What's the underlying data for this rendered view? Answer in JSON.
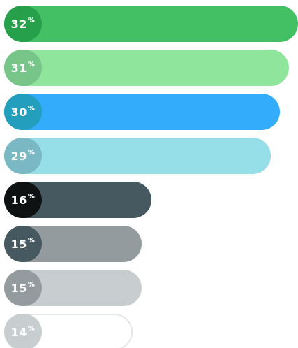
{
  "chart_data": {
    "type": "bar",
    "orientation": "horizontal",
    "unit_label": "%",
    "xlim": [
      0,
      32
    ],
    "bars": [
      {
        "value": 32,
        "label": "32",
        "bar_color": "#43c064",
        "badge_color": "#26a04a",
        "outline": false
      },
      {
        "value": 31,
        "label": "31",
        "bar_color": "#90e59d",
        "badge_color": "#77c589",
        "outline": false
      },
      {
        "value": 30,
        "label": "30",
        "bar_color": "#33adfb",
        "badge_color": "#239fbd",
        "outline": false
      },
      {
        "value": 29,
        "label": "29",
        "bar_color": "#96dee8",
        "badge_color": "#7ab9c3",
        "outline": false
      },
      {
        "value": 16,
        "label": "16",
        "bar_color": "#465961",
        "badge_color": "#0f1213",
        "outline": false
      },
      {
        "value": 15,
        "label": "15",
        "bar_color": "#949b9e",
        "badge_color": "#465961",
        "outline": false
      },
      {
        "value": 15,
        "label": "15",
        "bar_color": "#c8cdcf",
        "badge_color": "#949b9e",
        "outline": false
      },
      {
        "value": 14,
        "label": "14",
        "bar_color": "#ffffff",
        "badge_color": "#c8cdcf",
        "outline": true
      }
    ]
  }
}
